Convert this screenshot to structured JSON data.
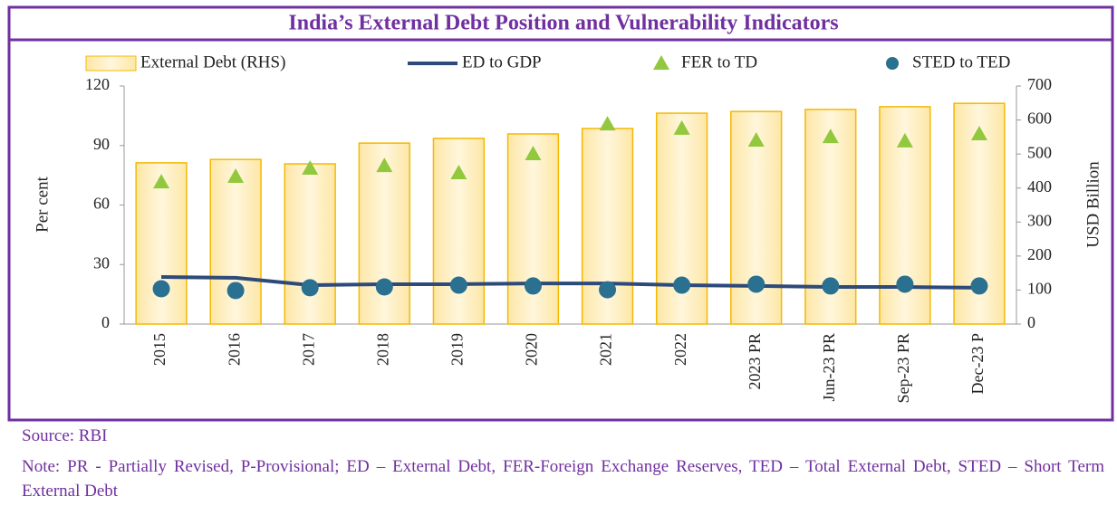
{
  "chart_data": {
    "type": "bar",
    "title": "India’s External Debt Position and Vulnerability Indicators",
    "categories": [
      "2015",
      "2016",
      "2017",
      "2018",
      "2019",
      "2020",
      "2021",
      "2022",
      "2023 PR",
      "Jun-23 PR",
      "Sep-23 PR",
      "Dec-23 P"
    ],
    "series": [
      {
        "name": "External Debt (RHS)",
        "type": "bar",
        "axis": "y2",
        "color": "#f5b800",
        "values": [
          474,
          484,
          471,
          532,
          546,
          559,
          575,
          620,
          625,
          631,
          639,
          649
        ]
      },
      {
        "name": "ED to GDP",
        "type": "line",
        "color": "#2e4a7a",
        "values": [
          23.7,
          23.3,
          19.6,
          20.1,
          20.1,
          20.5,
          20.5,
          19.6,
          19.2,
          18.7,
          18.7,
          18.3
        ]
      },
      {
        "name": "FER to TD",
        "type": "scatter",
        "marker": "triangle",
        "color": "#92c83e",
        "values": [
          71.6,
          74.4,
          78.5,
          79.8,
          76.2,
          85.8,
          100.8,
          98.6,
          92.6,
          94.4,
          92.2,
          95.8
        ]
      },
      {
        "name": "STED to TED",
        "type": "scatter",
        "marker": "circle",
        "color": "#2a7090",
        "values": [
          17.8,
          16.9,
          18.3,
          18.7,
          19.6,
          19.2,
          17.3,
          19.6,
          20.1,
          19.2,
          20.1,
          19.2
        ]
      }
    ],
    "ylabel": "Per cent",
    "y2label": "USD Billion",
    "ylim": [
      0,
      120
    ],
    "yticks": [
      0,
      30,
      60,
      90,
      120
    ],
    "y2lim": [
      0,
      700
    ],
    "y2ticks": [
      0,
      100,
      200,
      300,
      400,
      500,
      600,
      700
    ],
    "legend": "top",
    "source": "Source: RBI",
    "note": "Note: PR - Partially Revised, P-Provisional; ED – External Debt, FER-Foreign Exchange Reserves, TED – Total External Debt, STED – Short Term External Debt"
  }
}
